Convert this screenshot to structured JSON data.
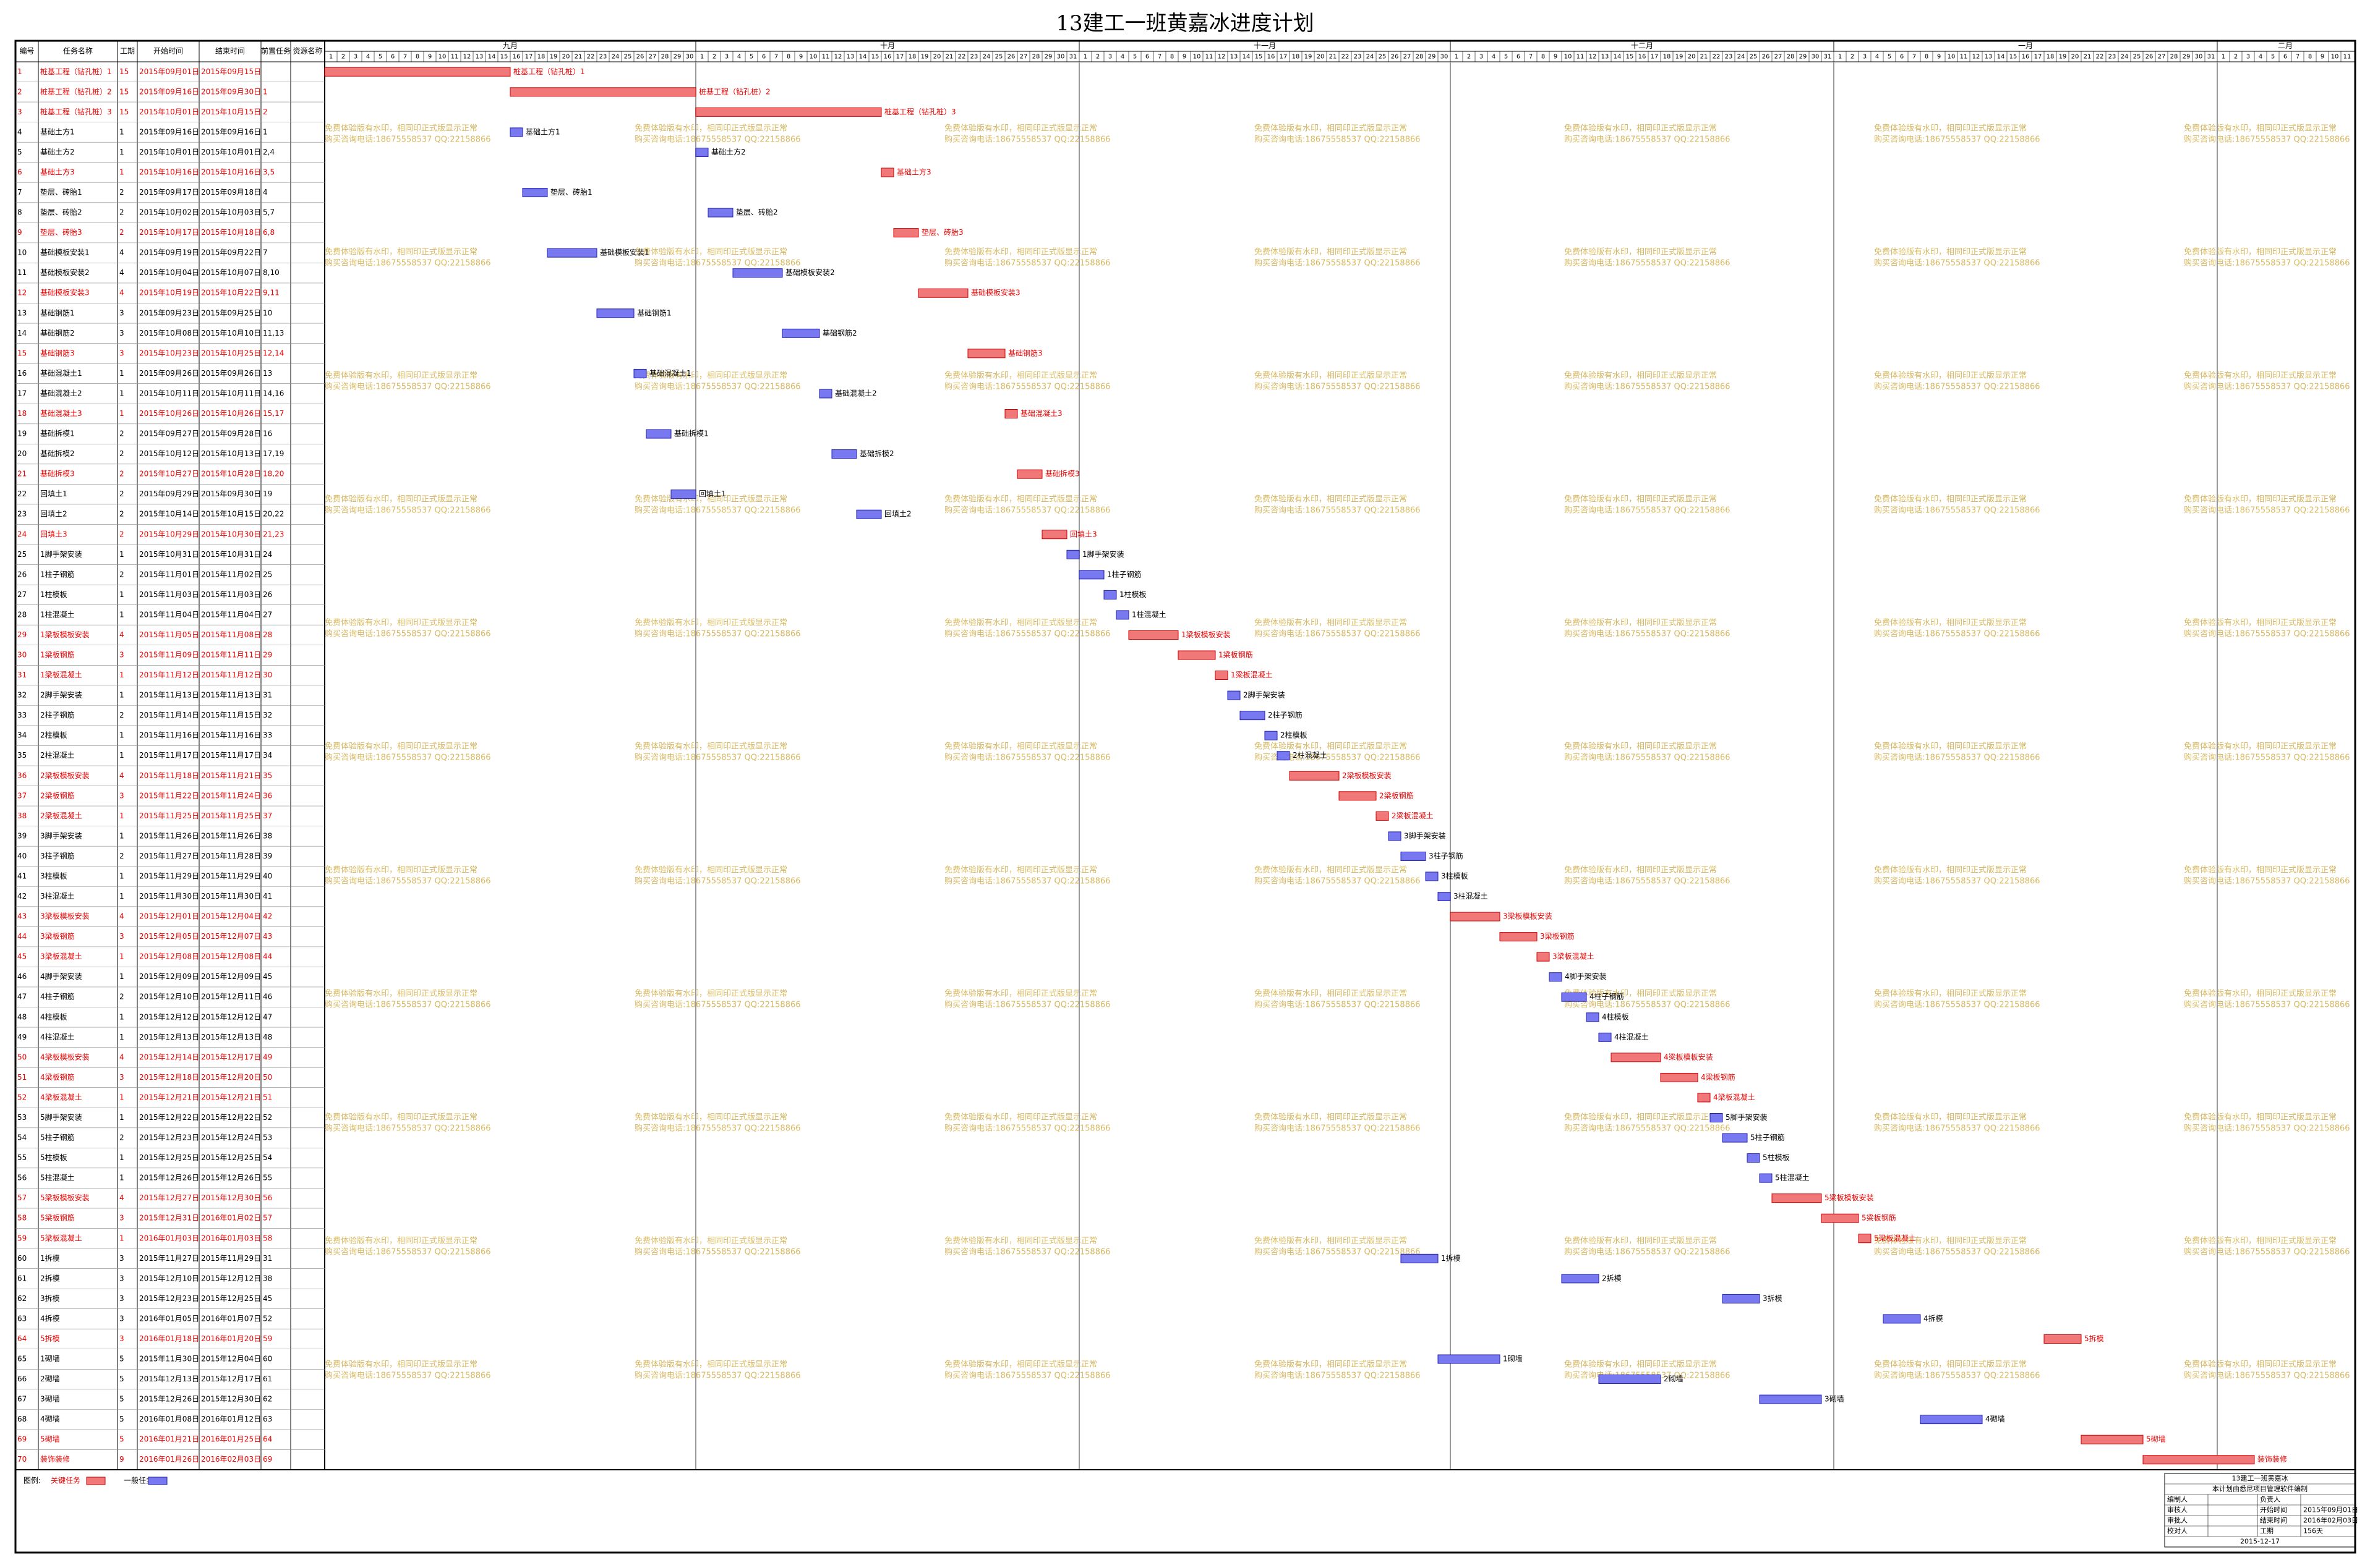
{
  "chart_data": {
    "type": "gantt",
    "title": "13建工一班黄嘉冰进度计划",
    "columns": [
      "编号",
      "任务名称",
      "工期",
      "开始时间",
      "结束时间",
      "前置任务",
      "资源名称"
    ],
    "months": [
      {
        "name": "九月",
        "days": [
          1,
          2,
          3,
          4,
          5,
          6,
          7,
          8,
          9,
          10,
          11,
          12,
          13,
          14,
          15,
          16,
          17,
          18,
          19,
          20,
          21,
          22,
          23,
          24,
          25,
          26,
          27,
          28,
          29,
          30
        ]
      },
      {
        "name": "十月",
        "days": [
          1,
          2,
          3,
          4,
          5,
          6,
          7,
          8,
          9,
          10,
          11,
          12,
          13,
          14,
          15,
          16,
          17,
          18,
          19,
          20,
          21,
          22,
          23,
          24,
          25,
          26,
          27,
          28,
          29,
          30,
          31
        ]
      },
      {
        "name": "十一月",
        "days": [
          1,
          2,
          3,
          4,
          5,
          6,
          7,
          8,
          9,
          10,
          11,
          12,
          13,
          14,
          15,
          16,
          17,
          18,
          19,
          20,
          21,
          22,
          23,
          24,
          25,
          26,
          27,
          28,
          29,
          30
        ]
      },
      {
        "name": "十二月",
        "days": [
          1,
          2,
          3,
          4,
          5,
          6,
          7,
          8,
          9,
          10,
          11,
          12,
          13,
          14,
          15,
          16,
          17,
          18,
          19,
          20,
          21,
          22,
          23,
          24,
          25,
          26,
          27,
          28,
          29,
          30,
          31
        ]
      },
      {
        "name": "一月",
        "days": [
          1,
          2,
          3,
          4,
          5,
          6,
          7,
          8,
          9,
          10,
          11,
          12,
          13,
          14,
          15,
          16,
          17,
          18,
          19,
          20,
          21,
          22,
          23,
          24,
          25,
          26,
          27,
          28,
          29,
          30,
          31
        ]
      },
      {
        "name": "二月",
        "days": [
          1,
          2,
          3,
          4,
          5,
          6,
          7,
          8,
          9,
          10,
          11
        ]
      }
    ],
    "tasks": [
      {
        "id": 1,
        "name": "桩基工程（钻孔桩）1",
        "duration": 15,
        "start": "2015年09月01日",
        "end": "2015年09月15日",
        "critical": true
      },
      {
        "id": 2,
        "name": "桩基工程（钻孔桩）2",
        "duration": 15,
        "start": "2015年09月16日",
        "end": "2015年09月30日",
        "pred": "1",
        "critical": true
      },
      {
        "id": 3,
        "name": "桩基工程（钻孔桩）3",
        "duration": 15,
        "start": "2015年10月01日",
        "end": "2015年10月15日",
        "pred": "2",
        "critical": true
      },
      {
        "id": 4,
        "name": "基础土方1",
        "duration": 1,
        "start": "2015年09月16日",
        "end": "2015年09月16日",
        "pred": "1",
        "critical": false
      },
      {
        "id": 5,
        "name": "基础土方2",
        "duration": 1,
        "start": "2015年10月01日",
        "end": "2015年10月01日",
        "pred": "2,4",
        "critical": false
      },
      {
        "id": 6,
        "name": "基础土方3",
        "duration": 1,
        "start": "2015年10月16日",
        "end": "2015年10月16日",
        "pred": "3,5",
        "critical": true
      },
      {
        "id": 7,
        "name": "垫层、砖胎1",
        "duration": 2,
        "start": "2015年09月17日",
        "end": "2015年09月18日",
        "pred": "4",
        "critical": false
      },
      {
        "id": 8,
        "name": "垫层、砖胎2",
        "duration": 2,
        "start": "2015年10月02日",
        "end": "2015年10月03日",
        "pred": "5,7",
        "critical": false
      },
      {
        "id": 9,
        "name": "垫层、砖胎3",
        "duration": 2,
        "start": "2015年10月17日",
        "end": "2015年10月18日",
        "pred": "6,8",
        "critical": true
      },
      {
        "id": 10,
        "name": "基础模板安装1",
        "duration": 4,
        "start": "2015年09月19日",
        "end": "2015年09月22日",
        "pred": "7",
        "critical": false
      },
      {
        "id": 11,
        "name": "基础模板安装2",
        "duration": 4,
        "start": "2015年10月04日",
        "end": "2015年10月07日",
        "pred": "8,10",
        "critical": false
      },
      {
        "id": 12,
        "name": "基础模板安装3",
        "duration": 4,
        "start": "2015年10月19日",
        "end": "2015年10月22日",
        "pred": "9,11",
        "critical": true
      },
      {
        "id": 13,
        "name": "基础钢筋1",
        "duration": 3,
        "start": "2015年09月23日",
        "end": "2015年09月25日",
        "pred": "10",
        "critical": false
      },
      {
        "id": 14,
        "name": "基础钢筋2",
        "duration": 3,
        "start": "2015年10月08日",
        "end": "2015年10月10日",
        "pred": "11,13",
        "critical": false
      },
      {
        "id": 15,
        "name": "基础钢筋3",
        "duration": 3,
        "start": "2015年10月23日",
        "end": "2015年10月25日",
        "pred": "12,14",
        "critical": true
      },
      {
        "id": 16,
        "name": "基础混凝土1",
        "duration": 1,
        "start": "2015年09月26日",
        "end": "2015年09月26日",
        "pred": "13",
        "critical": false
      },
      {
        "id": 17,
        "name": "基础混凝土2",
        "duration": 1,
        "start": "2015年10月11日",
        "end": "2015年10月11日",
        "pred": "14,16",
        "critical": false
      },
      {
        "id": 18,
        "name": "基础混凝土3",
        "duration": 1,
        "start": "2015年10月26日",
        "end": "2015年10月26日",
        "pred": "15,17",
        "critical": true
      },
      {
        "id": 19,
        "name": "基础拆模1",
        "duration": 2,
        "start": "2015年09月27日",
        "end": "2015年09月28日",
        "pred": "16",
        "critical": false
      },
      {
        "id": 20,
        "name": "基础拆模2",
        "duration": 2,
        "start": "2015年10月12日",
        "end": "2015年10月13日",
        "pred": "17,19",
        "critical": false
      },
      {
        "id": 21,
        "name": "基础拆模3",
        "duration": 2,
        "start": "2015年10月27日",
        "end": "2015年10月28日",
        "pred": "18,20",
        "critical": true
      },
      {
        "id": 22,
        "name": "回填土1",
        "duration": 2,
        "start": "2015年09月29日",
        "end": "2015年09月30日",
        "pred": "19",
        "critical": false
      },
      {
        "id": 23,
        "name": "回填土2",
        "duration": 2,
        "start": "2015年10月14日",
        "end": "2015年10月15日",
        "pred": "20,22",
        "critical": false
      },
      {
        "id": 24,
        "name": "回填土3",
        "duration": 2,
        "start": "2015年10月29日",
        "end": "2015年10月30日",
        "pred": "21,23",
        "critical": true
      },
      {
        "id": 25,
        "name": "1脚手架安装",
        "duration": 1,
        "start": "2015年10月31日",
        "end": "2015年10月31日",
        "pred": "24",
        "critical": false
      },
      {
        "id": 26,
        "name": "1柱子钢筋",
        "duration": 2,
        "start": "2015年11月01日",
        "end": "2015年11月02日",
        "pred": "25",
        "critical": false
      },
      {
        "id": 27,
        "name": "1柱模板",
        "duration": 1,
        "start": "2015年11月03日",
        "end": "2015年11月03日",
        "pred": "26",
        "critical": false
      },
      {
        "id": 28,
        "name": "1柱混凝土",
        "duration": 1,
        "start": "2015年11月04日",
        "end": "2015年11月04日",
        "pred": "27",
        "critical": false
      },
      {
        "id": 29,
        "name": "1梁板模板安装",
        "duration": 4,
        "start": "2015年11月05日",
        "end": "2015年11月08日",
        "pred": "28",
        "critical": true
      },
      {
        "id": 30,
        "name": "1梁板钢筋",
        "duration": 3,
        "start": "2015年11月09日",
        "end": "2015年11月11日",
        "pred": "29",
        "critical": true
      },
      {
        "id": 31,
        "name": "1梁板混凝土",
        "duration": 1,
        "start": "2015年11月12日",
        "end": "2015年11月12日",
        "pred": "30",
        "critical": true
      },
      {
        "id": 32,
        "name": "2脚手架安装",
        "duration": 1,
        "start": "2015年11月13日",
        "end": "2015年11月13日",
        "pred": "31",
        "critical": false
      },
      {
        "id": 33,
        "name": "2柱子钢筋",
        "duration": 2,
        "start": "2015年11月14日",
        "end": "2015年11月15日",
        "pred": "32",
        "critical": false
      },
      {
        "id": 34,
        "name": "2柱模板",
        "duration": 1,
        "start": "2015年11月16日",
        "end": "2015年11月16日",
        "pred": "33",
        "critical": false
      },
      {
        "id": 35,
        "name": "2柱混凝土",
        "duration": 1,
        "start": "2015年11月17日",
        "end": "2015年11月17日",
        "pred": "34",
        "critical": false
      },
      {
        "id": 36,
        "name": "2梁板模板安装",
        "duration": 4,
        "start": "2015年11月18日",
        "end": "2015年11月21日",
        "pred": "35",
        "critical": true
      },
      {
        "id": 37,
        "name": "2梁板钢筋",
        "duration": 3,
        "start": "2015年11月22日",
        "end": "2015年11月24日",
        "pred": "36",
        "critical": true
      },
      {
        "id": 38,
        "name": "2梁板混凝土",
        "duration": 1,
        "start": "2015年11月25日",
        "end": "2015年11月25日",
        "pred": "37",
        "critical": true
      },
      {
        "id": 39,
        "name": "3脚手架安装",
        "duration": 1,
        "start": "2015年11月26日",
        "end": "2015年11月26日",
        "pred": "38",
        "critical": false
      },
      {
        "id": 40,
        "name": "3柱子钢筋",
        "duration": 2,
        "start": "2015年11月27日",
        "end": "2015年11月28日",
        "pred": "39",
        "critical": false
      },
      {
        "id": 41,
        "name": "3柱模板",
        "duration": 1,
        "start": "2015年11月29日",
        "end": "2015年11月29日",
        "pred": "40",
        "critical": false
      },
      {
        "id": 42,
        "name": "3柱混凝土",
        "duration": 1,
        "start": "2015年11月30日",
        "end": "2015年11月30日",
        "pred": "41",
        "critical": false
      },
      {
        "id": 43,
        "name": "3梁板模板安装",
        "duration": 4,
        "start": "2015年12月01日",
        "end": "2015年12月04日",
        "pred": "42",
        "critical": true
      },
      {
        "id": 44,
        "name": "3梁板钢筋",
        "duration": 3,
        "start": "2015年12月05日",
        "end": "2015年12月07日",
        "pred": "43",
        "critical": true
      },
      {
        "id": 45,
        "name": "3梁板混凝土",
        "duration": 1,
        "start": "2015年12月08日",
        "end": "2015年12月08日",
        "pred": "44",
        "critical": true
      },
      {
        "id": 46,
        "name": "4脚手架安装",
        "duration": 1,
        "start": "2015年12月09日",
        "end": "2015年12月09日",
        "pred": "45",
        "critical": false
      },
      {
        "id": 47,
        "name": "4柱子钢筋",
        "duration": 2,
        "start": "2015年12月10日",
        "end": "2015年12月11日",
        "pred": "46",
        "critical": false
      },
      {
        "id": 48,
        "name": "4柱模板",
        "duration": 1,
        "start": "2015年12月12日",
        "end": "2015年12月12日",
        "pred": "47",
        "critical": false
      },
      {
        "id": 49,
        "name": "4柱混凝土",
        "duration": 1,
        "start": "2015年12月13日",
        "end": "2015年12月13日",
        "pred": "48",
        "critical": false
      },
      {
        "id": 50,
        "name": "4梁板模板安装",
        "duration": 4,
        "start": "2015年12月14日",
        "end": "2015年12月17日",
        "pred": "49",
        "critical": true
      },
      {
        "id": 51,
        "name": "4梁板钢筋",
        "duration": 3,
        "start": "2015年12月18日",
        "end": "2015年12月20日",
        "pred": "50",
        "critical": true
      },
      {
        "id": 52,
        "name": "4梁板混凝土",
        "duration": 1,
        "start": "2015年12月21日",
        "end": "2015年12月21日",
        "pred": "51",
        "critical": true
      },
      {
        "id": 53,
        "name": "5脚手架安装",
        "duration": 1,
        "start": "2015年12月22日",
        "end": "2015年12月22日",
        "pred": "52",
        "critical": false
      },
      {
        "id": 54,
        "name": "5柱子钢筋",
        "duration": 2,
        "start": "2015年12月23日",
        "end": "2015年12月24日",
        "pred": "53",
        "critical": false
      },
      {
        "id": 55,
        "name": "5柱模板",
        "duration": 1,
        "start": "2015年12月25日",
        "end": "2015年12月25日",
        "pred": "54",
        "critical": false
      },
      {
        "id": 56,
        "name": "5柱混凝土",
        "duration": 1,
        "start": "2015年12月26日",
        "end": "2015年12月26日",
        "pred": "55",
        "critical": false
      },
      {
        "id": 57,
        "name": "5梁板模板安装",
        "duration": 4,
        "start": "2015年12月27日",
        "end": "2015年12月30日",
        "pred": "56",
        "critical": true
      },
      {
        "id": 58,
        "name": "5梁板钢筋",
        "duration": 3,
        "start": "2015年12月31日",
        "end": "2016年01月02日",
        "pred": "57",
        "critical": true
      },
      {
        "id": 59,
        "name": "5梁板混凝土",
        "duration": 1,
        "start": "2016年01月03日",
        "end": "2016年01月03日",
        "pred": "58",
        "critical": true
      },
      {
        "id": 60,
        "name": "1拆模",
        "duration": 3,
        "start": "2015年11月27日",
        "end": "2015年11月29日",
        "pred": "31",
        "critical": false
      },
      {
        "id": 61,
        "name": "2拆模",
        "duration": 3,
        "start": "2015年12月10日",
        "end": "2015年12月12日",
        "pred": "38",
        "critical": false
      },
      {
        "id": 62,
        "name": "3拆模",
        "duration": 3,
        "start": "2015年12月23日",
        "end": "2015年12月25日",
        "pred": "45",
        "critical": false
      },
      {
        "id": 63,
        "name": "4拆模",
        "duration": 3,
        "start": "2016年01月05日",
        "end": "2016年01月07日",
        "pred": "52",
        "critical": false
      },
      {
        "id": 64,
        "name": "5拆模",
        "duration": 3,
        "start": "2016年01月18日",
        "end": "2016年01月20日",
        "pred": "59",
        "critical": true
      },
      {
        "id": 65,
        "name": "1砌墙",
        "duration": 5,
        "start": "2015年11月30日",
        "end": "2015年12月04日",
        "pred": "60",
        "critical": false
      },
      {
        "id": 66,
        "name": "2砌墙",
        "duration": 5,
        "start": "2015年12月13日",
        "end": "2015年12月17日",
        "pred": "61",
        "critical": false
      },
      {
        "id": 67,
        "name": "3砌墙",
        "duration": 5,
        "start": "2015年12月26日",
        "end": "2015年12月30日",
        "pred": "62",
        "critical": false
      },
      {
        "id": 68,
        "name": "4砌墙",
        "duration": 5,
        "start": "2016年01月08日",
        "end": "2016年01月12日",
        "pred": "63",
        "critical": false
      },
      {
        "id": 69,
        "name": "5砌墙",
        "duration": 5,
        "start": "2016年01月21日",
        "end": "2016年01月25日",
        "pred": "64",
        "critical": true
      },
      {
        "id": 70,
        "name": "装饰装修",
        "duration": 9,
        "start": "2016年01月26日",
        "end": "2016年02月03日",
        "pred": "69",
        "critical": true
      }
    ],
    "critical_color": "#f07878",
    "normal_color": "#7878f0",
    "watermark": [
      "免费体验版有水印，相同印正式版显示正常",
      "购买咨询电话:18675558537 QQ:22158866"
    ],
    "legend": {
      "title": "图例:",
      "critical": "关键任务",
      "normal": "一般任务"
    },
    "footer": {
      "title": "13建工一班黄嘉冰",
      "subtitle": "本计划由悉尼项目管理软件编制",
      "rows": [
        {
          "left": "编制人",
          "right": "负责人"
        },
        {
          "left": "审核人",
          "right": "开始时间",
          "value": "2015年09月01日"
        },
        {
          "left": "审批人",
          "right": "结束时间",
          "value": "2016年02月03日"
        },
        {
          "left": "校对人",
          "right": "工期",
          "value": "156天"
        }
      ],
      "date": "2015-12-17"
    }
  }
}
